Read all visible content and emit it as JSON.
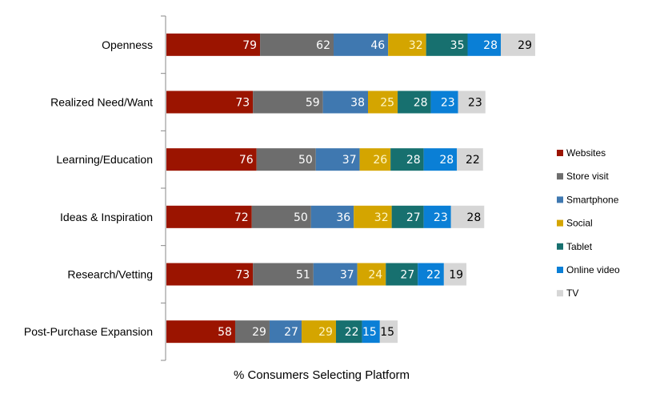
{
  "chart_data": {
    "type": "bar",
    "orientation": "horizontal",
    "stacked": true,
    "title": "",
    "xlabel": "% Consumers Selecting Platform",
    "ylabel": "",
    "categories": [
      "Openness",
      "Realized Need/Want",
      "Learning/Education",
      "Ideas & Inspiration",
      "Research/Vetting",
      "Post-Purchase Expansion"
    ],
    "series": [
      {
        "name": "Websites",
        "color": "#9b1400",
        "label_color": "#ffffff",
        "values": [
          79,
          73,
          76,
          72,
          73,
          58
        ]
      },
      {
        "name": "Store visit",
        "color": "#6d6d6d",
        "label_color": "#ffffff",
        "values": [
          62,
          59,
          50,
          50,
          51,
          29
        ]
      },
      {
        "name": "Smartphone",
        "color": "#3f78b0",
        "label_color": "#ffffff",
        "values": [
          46,
          38,
          37,
          36,
          37,
          27
        ]
      },
      {
        "name": "Social",
        "color": "#d4a500",
        "label_color": "#fff7c8",
        "values": [
          32,
          25,
          26,
          32,
          24,
          29
        ]
      },
      {
        "name": "Tablet",
        "color": "#17706f",
        "label_color": "#ffffff",
        "values": [
          35,
          28,
          28,
          27,
          27,
          22
        ]
      },
      {
        "name": "Online video",
        "color": "#0a7fd6",
        "label_color": "#ffffff",
        "values": [
          28,
          23,
          28,
          23,
          22,
          15
        ]
      },
      {
        "name": "TV",
        "color": "#d6d6d6",
        "label_color": "#000000",
        "values": [
          29,
          23,
          22,
          28,
          19,
          15
        ]
      }
    ],
    "xlim": [
      0,
      311
    ],
    "grid": false,
    "legend_position": "right"
  }
}
